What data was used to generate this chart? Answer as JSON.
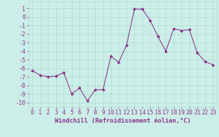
{
  "x": [
    0,
    1,
    2,
    3,
    4,
    5,
    6,
    7,
    8,
    9,
    10,
    11,
    12,
    13,
    14,
    15,
    16,
    17,
    18,
    19,
    20,
    21,
    22,
    23
  ],
  "y": [
    -6.3,
    -6.8,
    -7.0,
    -6.9,
    -6.5,
    -9.0,
    -8.3,
    -9.8,
    -8.5,
    -8.5,
    -4.6,
    -5.3,
    -3.3,
    0.9,
    0.9,
    -0.4,
    -2.3,
    -4.0,
    -1.4,
    -1.6,
    -1.5,
    -4.2,
    -5.2,
    -5.6
  ],
  "line_color": "#993399",
  "marker": "D",
  "marker_size": 2.0,
  "line_width": 0.8,
  "xlabel": "Windchill (Refroidissement éolien,°C)",
  "xlim": [
    -0.5,
    23.5
  ],
  "ylim": [
    -10.5,
    1.8
  ],
  "yticks": [
    1,
    0,
    -1,
    -2,
    -3,
    -4,
    -5,
    -6,
    -7,
    -8,
    -9,
    -10
  ],
  "xtick_labels": [
    "0",
    "1",
    "2",
    "3",
    "4",
    "5",
    "6",
    "7",
    "8",
    "9",
    "10",
    "11",
    "12",
    "13",
    "14",
    "15",
    "16",
    "17",
    "18",
    "19",
    "20",
    "21",
    "22",
    "23"
  ],
  "bg_color": "#cceee8",
  "grid_color": "#aaddcc",
  "line_purple": "#883388",
  "font_size_xlabel": 6.5,
  "font_size_tick": 6.0
}
